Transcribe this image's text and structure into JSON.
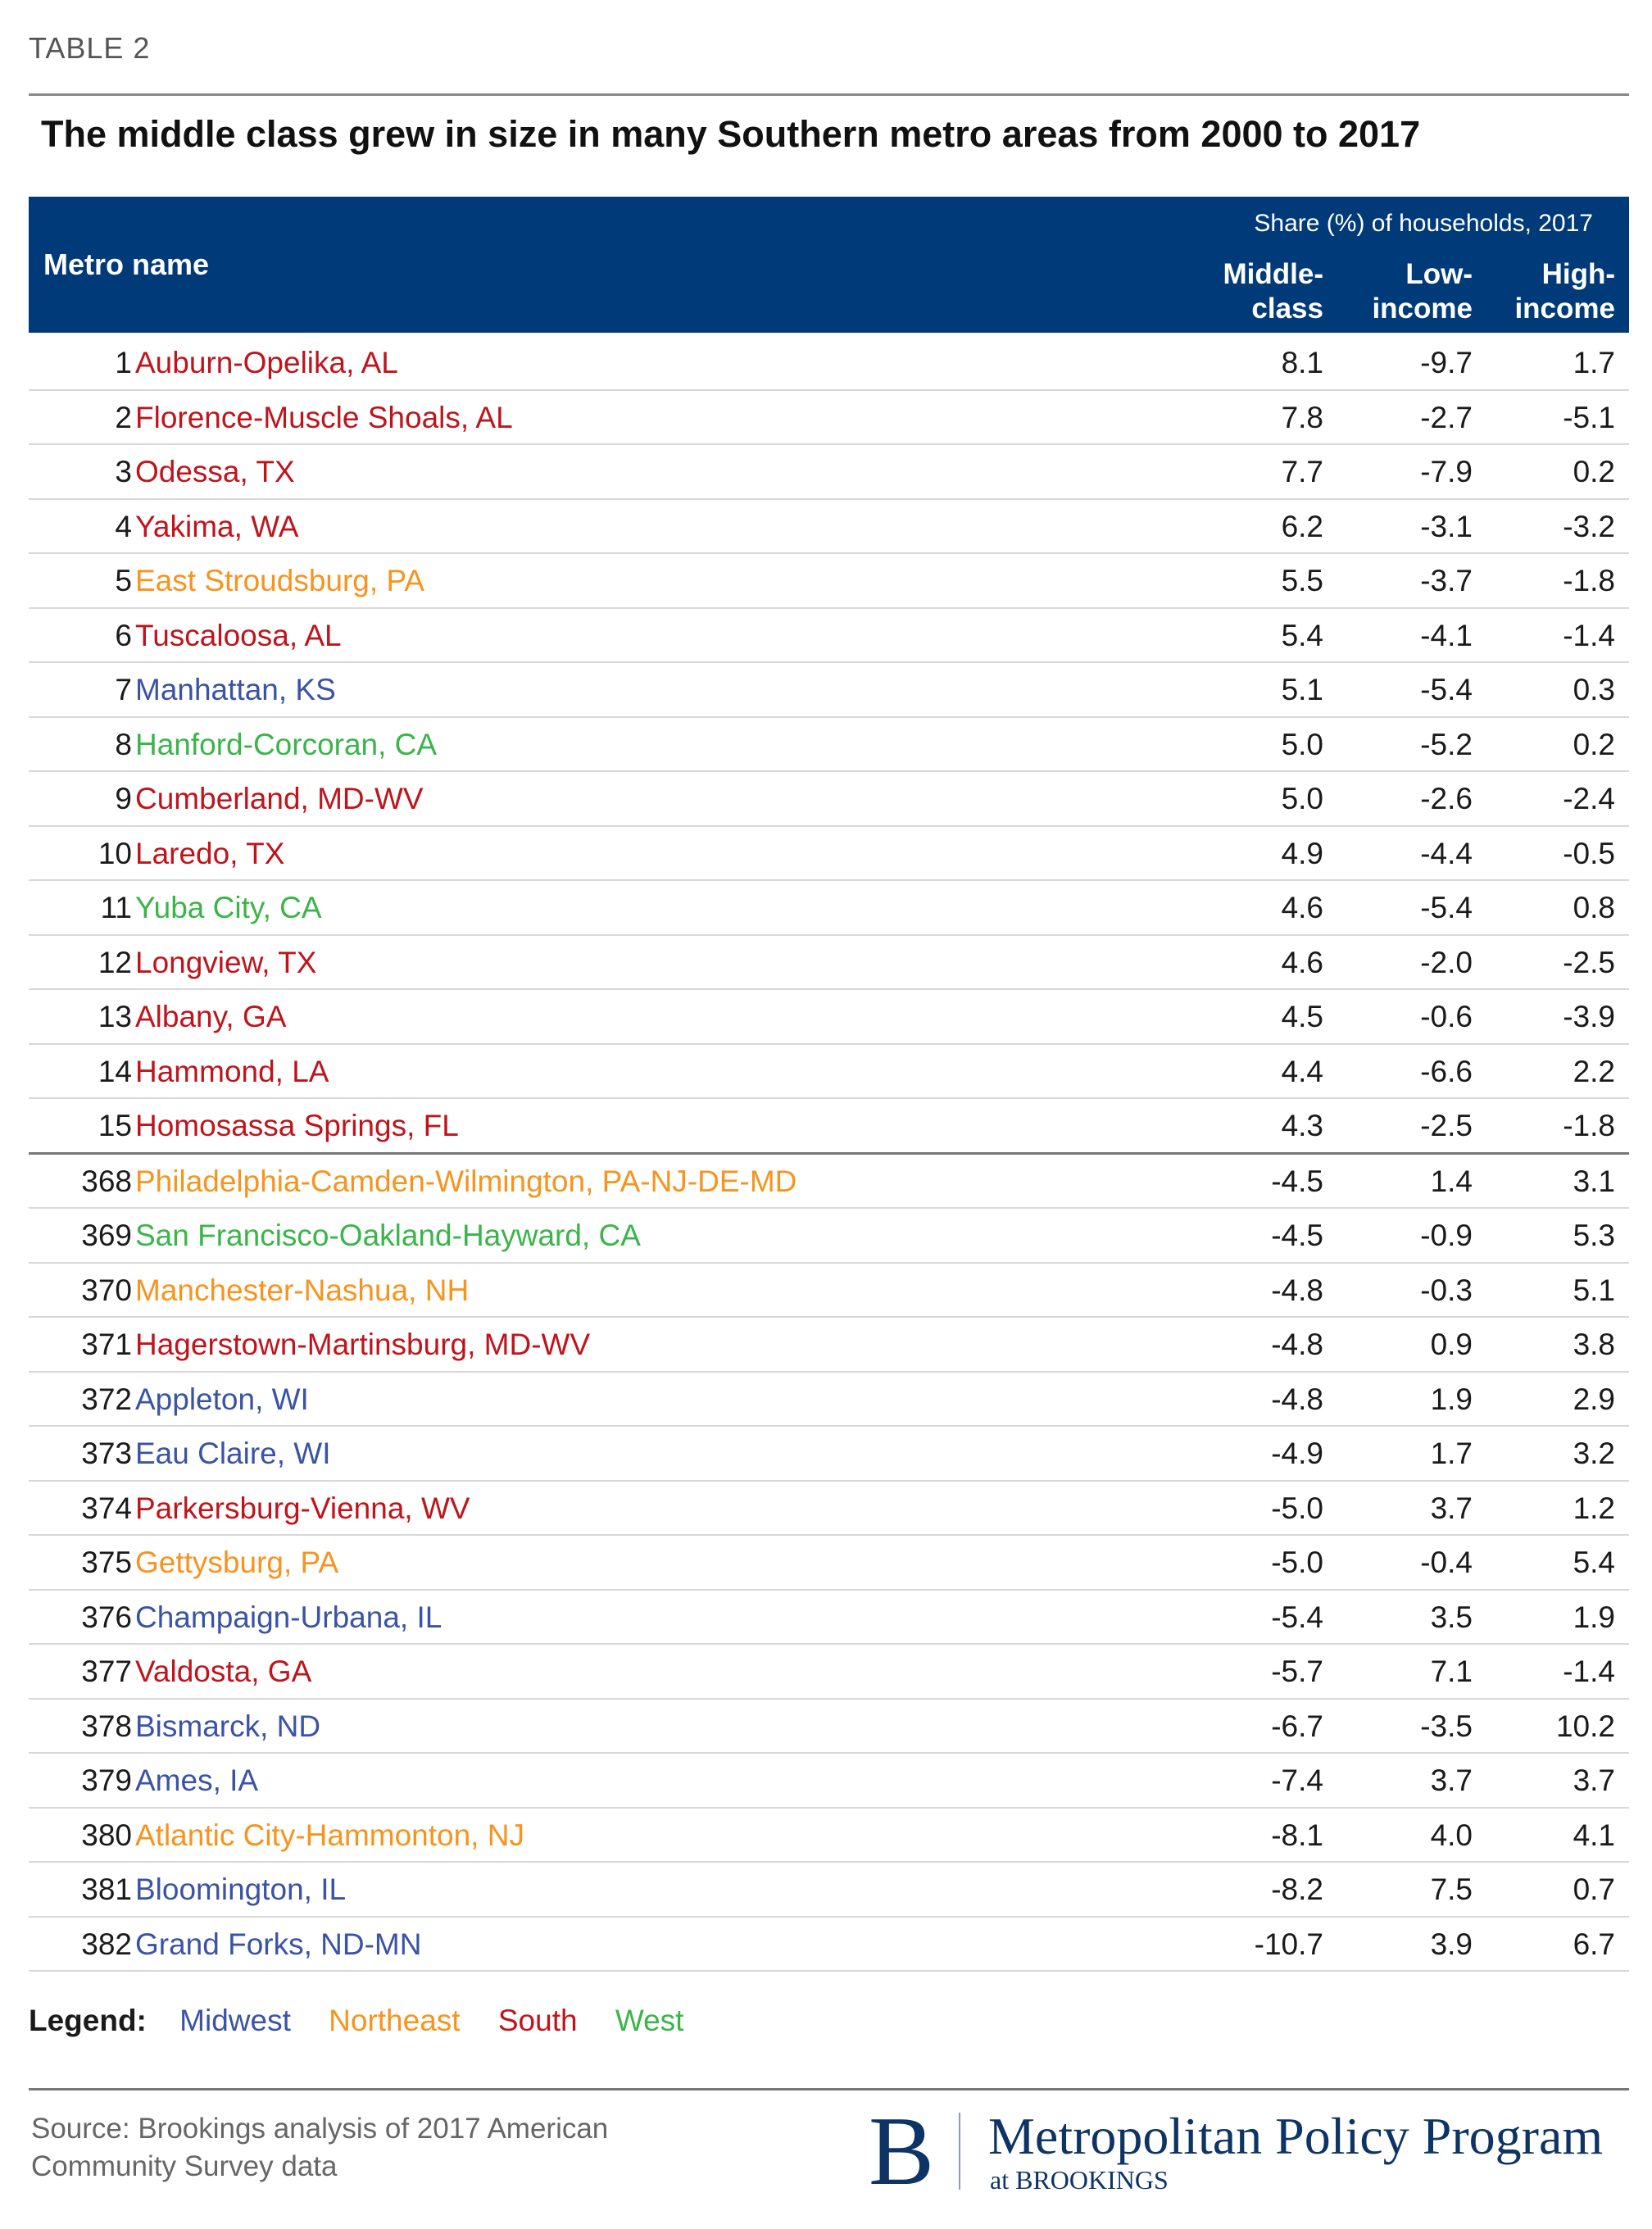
{
  "label": "TABLE 2",
  "title": "The middle class grew in size in many Southern metro areas from 2000 to 2017",
  "header": {
    "metro": "Metro name",
    "share": "Share (%) of households, 2017",
    "col1a": "Middle-",
    "col1b": "class",
    "col2a": "Low-",
    "col2b": "income",
    "col3a": "High-",
    "col3b": "income"
  },
  "region_colors": {
    "Midwest": "#3a53a4",
    "Northeast": "#f7941d",
    "South": "#c0141c",
    "West": "#3ab54a"
  },
  "rows": [
    {
      "rank": "1",
      "name": "Auburn-Opelika, AL",
      "region": "South",
      "middle": "8.1",
      "low": "-9.7",
      "high": "1.7"
    },
    {
      "rank": "2",
      "name": "Florence-Muscle Shoals, AL",
      "region": "South",
      "middle": "7.8",
      "low": "-2.7",
      "high": "-5.1"
    },
    {
      "rank": "3",
      "name": "Odessa, TX",
      "region": "South",
      "middle": "7.7",
      "low": "-7.9",
      "high": "0.2"
    },
    {
      "rank": "4",
      "name": "Yakima, WA",
      "region": "South",
      "middle": "6.2",
      "low": "-3.1",
      "high": "-3.2"
    },
    {
      "rank": "5",
      "name": "East Stroudsburg, PA",
      "region": "Northeast",
      "middle": "5.5",
      "low": "-3.7",
      "high": "-1.8"
    },
    {
      "rank": "6",
      "name": "Tuscaloosa, AL",
      "region": "South",
      "middle": "5.4",
      "low": "-4.1",
      "high": "-1.4"
    },
    {
      "rank": "7",
      "name": "Manhattan, KS",
      "region": "Midwest",
      "middle": "5.1",
      "low": "-5.4",
      "high": "0.3"
    },
    {
      "rank": "8",
      "name": "Hanford-Corcoran, CA",
      "region": "West",
      "middle": "5.0",
      "low": "-5.2",
      "high": "0.2"
    },
    {
      "rank": "9",
      "name": "Cumberland, MD-WV",
      "region": "South",
      "middle": "5.0",
      "low": "-2.6",
      "high": "-2.4"
    },
    {
      "rank": "10",
      "name": "Laredo, TX",
      "region": "South",
      "middle": "4.9",
      "low": "-4.4",
      "high": "-0.5"
    },
    {
      "rank": "11",
      "name": "Yuba City, CA",
      "region": "West",
      "middle": "4.6",
      "low": "-5.4",
      "high": "0.8"
    },
    {
      "rank": "12",
      "name": "Longview, TX",
      "region": "South",
      "middle": "4.6",
      "low": "-2.0",
      "high": "-2.5"
    },
    {
      "rank": "13",
      "name": "Albany, GA",
      "region": "South",
      "middle": "4.5",
      "low": "-0.6",
      "high": "-3.9"
    },
    {
      "rank": "14",
      "name": "Hammond, LA",
      "region": "South",
      "middle": "4.4",
      "low": "-6.6",
      "high": "2.2"
    },
    {
      "rank": "15",
      "name": "Homosassa Springs, FL",
      "region": "South",
      "middle": "4.3",
      "low": "-2.5",
      "high": "-1.8"
    },
    {
      "rank": "368",
      "name": "Philadelphia-Camden-Wilmington, PA-NJ-DE-MD",
      "region": "Northeast",
      "middle": "-4.5",
      "low": "1.4",
      "high": "3.1"
    },
    {
      "rank": "369",
      "name": "San Francisco-Oakland-Hayward, CA",
      "region": "West",
      "middle": "-4.5",
      "low": "-0.9",
      "high": "5.3"
    },
    {
      "rank": "370",
      "name": "Manchester-Nashua, NH",
      "region": "Northeast",
      "middle": "-4.8",
      "low": "-0.3",
      "high": "5.1"
    },
    {
      "rank": "371",
      "name": "Hagerstown-Martinsburg, MD-WV",
      "region": "South",
      "middle": "-4.8",
      "low": "0.9",
      "high": "3.8"
    },
    {
      "rank": "372",
      "name": "Appleton, WI",
      "region": "Midwest",
      "middle": "-4.8",
      "low": "1.9",
      "high": "2.9"
    },
    {
      "rank": "373",
      "name": "Eau Claire, WI",
      "region": "Midwest",
      "middle": "-4.9",
      "low": "1.7",
      "high": "3.2"
    },
    {
      "rank": "374",
      "name": "Parkersburg-Vienna, WV",
      "region": "South",
      "middle": "-5.0",
      "low": "3.7",
      "high": "1.2"
    },
    {
      "rank": "375",
      "name": "Gettysburg, PA",
      "region": "Northeast",
      "middle": "-5.0",
      "low": "-0.4",
      "high": "5.4"
    },
    {
      "rank": "376",
      "name": "Champaign-Urbana, IL",
      "region": "Midwest",
      "middle": "-5.4",
      "low": "3.5",
      "high": "1.9"
    },
    {
      "rank": "377",
      "name": "Valdosta, GA",
      "region": "South",
      "middle": "-5.7",
      "low": "7.1",
      "high": "-1.4"
    },
    {
      "rank": "378",
      "name": "Bismarck, ND",
      "region": "Midwest",
      "middle": "-6.7",
      "low": "-3.5",
      "high": "10.2"
    },
    {
      "rank": "379",
      "name": "Ames, IA",
      "region": "Midwest",
      "middle": "-7.4",
      "low": "3.7",
      "high": "3.7"
    },
    {
      "rank": "380",
      "name": "Atlantic City-Hammonton, NJ",
      "region": "Northeast",
      "middle": "-8.1",
      "low": "4.0",
      "high": "4.1"
    },
    {
      "rank": "381",
      "name": "Bloomington, IL",
      "region": "Midwest",
      "middle": "-8.2",
      "low": "7.5",
      "high": "0.7"
    },
    {
      "rank": "382",
      "name": "Grand Forks, ND-MN",
      "region": "Midwest",
      "middle": "-10.7",
      "low": "3.9",
      "high": "6.7"
    }
  ],
  "legend": {
    "label": "Legend:",
    "items": [
      "Midwest",
      "Northeast",
      "South",
      "West"
    ]
  },
  "source": "Source: Brookings analysis of 2017 American Community Survey data",
  "logo": {
    "letter": "B",
    "name": "Metropolitan Policy Program",
    "sub": "at BROOKINGS"
  }
}
